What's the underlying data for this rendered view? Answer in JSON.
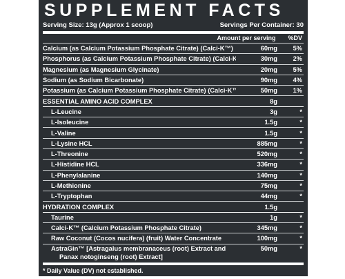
{
  "label": {
    "title": "SUPPLEMENT FACTS",
    "serving_size": "Serving Size: 13g (Approx 1 scoop)",
    "servings_per_container": "Servings Per Container: 30",
    "amount_header": "Amount per serving",
    "dv_header": "%DV",
    "rows": [
      {
        "name": "Calcium (as Calcium Potassium Phosphate Citrate) (Calci-K™)",
        "amount": "60mg",
        "dv": "5%"
      },
      {
        "name": "Phosphorus (as Calcium Potassium Phosphate Citrate) (Calci-K™)",
        "amount": "30mg",
        "dv": "2%"
      },
      {
        "name": "Magnesium (as Magnesium Glycinate)",
        "amount": "20mg",
        "dv": "5%"
      },
      {
        "name": "Sodium (as Sodium Bicarbonate)",
        "amount": "90mg",
        "dv": "4%"
      },
      {
        "name": "Potassium (as Calcium Potassium Phosphate Citrate) (Calci-K™)",
        "amount": "50mg",
        "dv": "1%"
      }
    ],
    "amino": {
      "header": "ESSENTIAL AMINO ACID COMPLEX",
      "amount": "8g",
      "items": [
        {
          "name": "L-Leucine",
          "amount": "3g",
          "dv": "*"
        },
        {
          "name": "L-Isoleucine",
          "amount": "1.5g",
          "dv": "*"
        },
        {
          "name": "L-Valine",
          "amount": "1.5g",
          "dv": "*"
        },
        {
          "name": "L-Lysine HCL",
          "amount": "885mg",
          "dv": "*"
        },
        {
          "name": "L-Threonine",
          "amount": "520mg",
          "dv": "*"
        },
        {
          "name": "L-Histidine HCL",
          "amount": "336mg",
          "dv": "*"
        },
        {
          "name": "L-Phenylalanine",
          "amount": "140mg",
          "dv": "*"
        },
        {
          "name": "L-Methionine",
          "amount": "75mg",
          "dv": "*"
        },
        {
          "name": "L-Tryptophan",
          "amount": "44mg",
          "dv": "*"
        }
      ]
    },
    "hydration": {
      "header": "HYDRATION COMPLEX",
      "amount": "1.5g",
      "items": [
        {
          "name": "Taurine",
          "amount": "1g",
          "dv": "*"
        },
        {
          "name": "Calci-K™ (Calcium Potassium Phosphate Citrate)",
          "amount": "345mg",
          "dv": "*"
        },
        {
          "name": "Raw Coconut (Cocos nucifera) (fruit) Water Concentrate",
          "amount": "100mg",
          "dv": "*"
        }
      ],
      "astragin": {
        "line1": "AstraGin™ [Astragalus membranaceus (root) Extract and",
        "line2": "Panax notoginseng (root) Extract]",
        "amount": "50mg",
        "dv": "*"
      }
    },
    "footnote": "* Daily Value (DV) not established."
  }
}
